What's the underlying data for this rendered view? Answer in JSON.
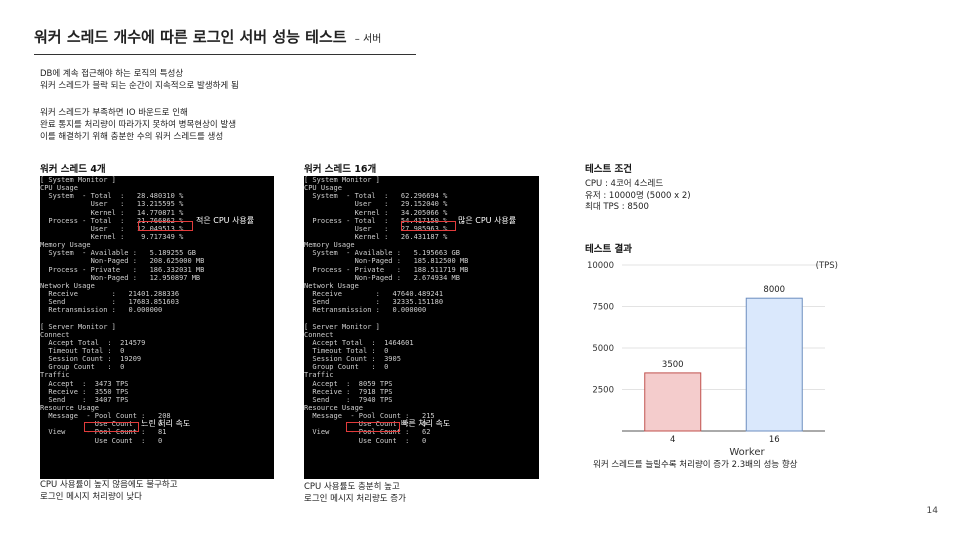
{
  "slide": {
    "title": "워커 스레드 개수에 따른 로그인 서버 성능 테스트",
    "title_suffix": "– 서버",
    "page_number": "14"
  },
  "description": {
    "para1": [
      "DB에 계속 접근해야 하는 로직의 특성상",
      "워커 스레드가 블락 되는 순간이 지속적으로 발생하게 됨"
    ],
    "para2": [
      "워커 스레드가 부족하면 IO 바운드로 인해",
      "완료 통지를 처리량이 따라가지 못하여 병목현상이 발생",
      "이를 해결하기 위해 충분한 수의 워커 스레드를 생성"
    ]
  },
  "left_panel": {
    "heading": "워커 스레드 4개",
    "console_lines": [
      "[ System Monitor ]",
      "CPU Usage",
      "  System  - Total  :   28.480310 %",
      "            User   :   13.215595 %",
      "            Kernel :   14.770871 %",
      "  Process - Total  :   21.766862 %",
      "            User   :   12.049513 %",
      "            Kernel :    9.717349 %",
      "Memory Usage",
      "  System  - Available :   5.189255 GB",
      "            Non-Paged :   208.625000 MB",
      "  Process - Private   :   186.332031 MB",
      "            Non-Paged :   12.950897 MB",
      "Network Usage",
      "  Receive        :   21401.288336",
      "  Send           :   17683.851603",
      "  Retransmission :   0.000000",
      "",
      "[ Server Monitor ]",
      "Connect",
      "  Accept Total  :  214579",
      "  Timeout Total :  0",
      "  Session Count :  19209",
      "  Group Count   :  0",
      "Traffic",
      "  Accept  :  3473 TPS",
      "  Receive :  3550 TPS",
      "  Send    :  3407 TPS",
      "Resource Usage",
      "  Message  - Pool Count :   208",
      "             Use Count  :   0",
      "  View     - Pool Count :   81",
      "             Use Count  :   0"
    ],
    "callout_cpu": "적은 CPU 사용률",
    "callout_speed": "느린 처리 속도",
    "caption": [
      "CPU 사용률이 높지 않음에도 불구하고",
      "로그인 메시지 처리량이 낮다"
    ]
  },
  "middle_panel": {
    "heading": "워커 스레드 16개",
    "console_lines": [
      "[ System Monitor ]",
      "CPU Usage",
      "  System  - Total  :   62.296694 %",
      "            User   :   29.152040 %",
      "            Kernel :   34.205066 %",
      "  Process - Total  :   54.417150 %",
      "            User   :   27.985963 %",
      "            Kernel :   26.431187 %",
      "Memory Usage",
      "  System  - Available :   5.195663 GB",
      "            Non-Paged :   185.812500 MB",
      "  Process - Private   :   188.511719 MB",
      "            Non-Paged :   2.674934 MB",
      "Network Usage",
      "  Receive        :   47640.489241",
      "  Send           :   32335.151180",
      "  Retransmission :   0.000000",
      "",
      "[ Server Monitor ]",
      "Connect",
      "  Accept Total  :  1464601",
      "  Timeout Total :  0",
      "  Session Count :  3905",
      "  Group Count   :  0",
      "Traffic",
      "  Accept  :  8059 TPS",
      "  Receive :  7918 TPS",
      "  Send    :  7940 TPS",
      "Resource Usage",
      "  Message  - Pool Count :   215",
      "             Use Count  :   0",
      "  View     - Pool Count :   62",
      "             Use Count  :   0"
    ],
    "callout_cpu": "많은 CPU 사용률",
    "callout_speed": "빠른 처리 속도",
    "caption": [
      "CPU 사용률도 충분히 높고",
      "로그인 메시지 처리량도 증가"
    ]
  },
  "test_conditions": {
    "heading": "테스트 조건",
    "lines": [
      "CPU : 4코어 4스레드",
      "유저 : 10000명 (5000 x 2)",
      "최대 TPS : 8500"
    ]
  },
  "test_results": {
    "heading": "테스트 결과",
    "caption": "워커 스레드를 늘릴수록 처리량이 증가 2.3배의 성능 향상"
  },
  "chart_data": {
    "type": "bar",
    "categories": [
      "4",
      "16"
    ],
    "values": [
      3500,
      8000
    ],
    "xlabel": "Worker",
    "ylabel": "(TPS)",
    "ylim": [
      0,
      10000
    ],
    "yticks": [
      2500,
      5000,
      7500,
      10000
    ],
    "grid": true,
    "colors": {
      "fills": [
        "#f4cccc",
        "#dae8fc"
      ],
      "strokes": [
        "#c0504d",
        "#6c8ebf"
      ]
    }
  }
}
